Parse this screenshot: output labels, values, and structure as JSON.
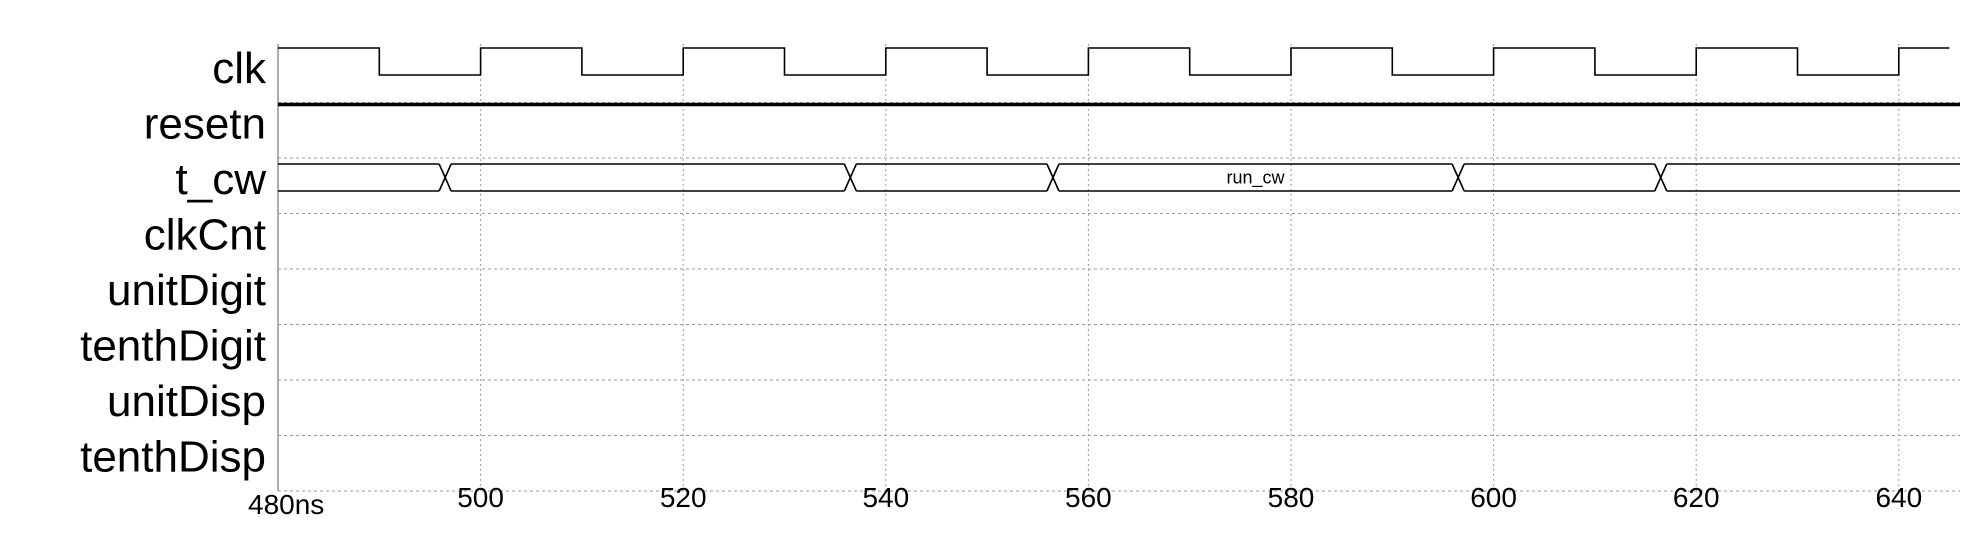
{
  "signals": [
    {
      "name": "clk",
      "type": "clock"
    },
    {
      "name": "resetn",
      "type": "high"
    },
    {
      "name": "t_cw",
      "type": "bus",
      "value_label": "run_cw",
      "transitions_ns": [
        496.5,
        536.5,
        556.5,
        596.5,
        616.5
      ]
    },
    {
      "name": "clkCnt",
      "type": "empty"
    },
    {
      "name": "unitDigit",
      "type": "empty"
    },
    {
      "name": "tenthDigit",
      "type": "empty"
    },
    {
      "name": "unitDisp",
      "type": "empty"
    },
    {
      "name": "tenthDisp",
      "type": "empty"
    }
  ],
  "time_axis": {
    "start_ns": 480,
    "end_ns": 645,
    "clock_period_ns": 20,
    "clock_rising_edges_ns": [
      480,
      500,
      520,
      540,
      560,
      580,
      600,
      620,
      640
    ],
    "tick_labels": [
      {
        "t": 480,
        "text": "480ns"
      },
      {
        "t": 500,
        "text": "500"
      },
      {
        "t": 520,
        "text": "520"
      },
      {
        "t": 540,
        "text": "540"
      },
      {
        "t": 560,
        "text": "560"
      },
      {
        "t": 580,
        "text": "580"
      },
      {
        "t": 600,
        "text": "600"
      },
      {
        "t": 620,
        "text": "620"
      },
      {
        "t": 640,
        "text": "640"
      }
    ]
  }
}
